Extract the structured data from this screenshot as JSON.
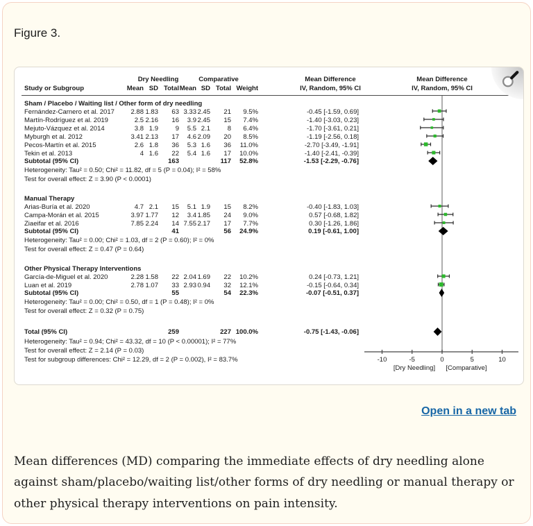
{
  "figure_label": "Figure 3.",
  "open_link_label": "Open in a new tab",
  "caption": "Mean differences (MD) comparing the immediate effects of dry needling alone against sham/placebo/waiting list/other forms of dry needling or manual therapy or other physical therapy interventions on pain intensity.",
  "colors": {
    "marker_green": "#2db82d",
    "diamond_black": "#000000",
    "ci_line": "#2b2b2b",
    "zero_line": "#9a9a9a",
    "axis": "#444444",
    "link_blue": "#1766a6",
    "card_bg": "#fffcf1",
    "card_border": "#f5d3c4"
  },
  "chart_data": {
    "type": "forest",
    "headers": {
      "group1": "Dry Needling",
      "group2": "Comparative",
      "study": "Study or Subgroup",
      "mean": "Mean",
      "sd": "SD",
      "total": "Total",
      "weight": "Weight",
      "effect_title": "Mean Difference",
      "effect_sub": "IV, Random, 95% CI"
    },
    "axis": {
      "ticks": [
        -10,
        -5,
        0,
        5,
        10
      ],
      "xmin": -13,
      "xmax": 12.8,
      "left_label": "[Dry Needling]",
      "right_label": "[Comparative]"
    },
    "subgroups": [
      {
        "title": "Sham / Placebo / Waiting list / Other form of dry needling",
        "studies": [
          {
            "name": "Fernández-Carnero et al. 2017",
            "mean1": "2.88",
            "sd1": "1.83",
            "total1": "63",
            "mean2": "3.33",
            "sd2": "2.45",
            "total2": "21",
            "weight": "9.5%",
            "w": 9.5,
            "ci_text": "-0.45 [-1.59, 0.69]",
            "est": -0.45,
            "lo": -1.59,
            "hi": 0.69
          },
          {
            "name": "Martín-Rodríguez et al. 2019",
            "mean1": "2.5",
            "sd1": "2.16",
            "total1": "16",
            "mean2": "3.9",
            "sd2": "2.45",
            "total2": "15",
            "weight": "7.4%",
            "w": 7.4,
            "ci_text": "-1.40 [-3.03, 0.23]",
            "est": -1.4,
            "lo": -3.03,
            "hi": 0.23
          },
          {
            "name": "Mejuto-Vázquez et al. 2014",
            "mean1": "3.8",
            "sd1": "1.9",
            "total1": "9",
            "mean2": "5.5",
            "sd2": "2.1",
            "total2": "8",
            "weight": "6.4%",
            "w": 6.4,
            "ci_text": "-1.70 [-3.61, 0.21]",
            "est": -1.7,
            "lo": -3.61,
            "hi": 0.21
          },
          {
            "name": "Myburgh et al. 2012",
            "mean1": "3.41",
            "sd1": "2.13",
            "total1": "17",
            "mean2": "4.6",
            "sd2": "2.09",
            "total2": "20",
            "weight": "8.5%",
            "w": 8.5,
            "ci_text": "-1.19 [-2.56, 0.18]",
            "est": -1.19,
            "lo": -2.56,
            "hi": 0.18
          },
          {
            "name": "Pecos-Martín et al. 2015",
            "mean1": "2.6",
            "sd1": "1.8",
            "total1": "36",
            "mean2": "5.3",
            "sd2": "1.6",
            "total2": "36",
            "weight": "11.0%",
            "w": 11.0,
            "ci_text": "-2.70 [-3.49, -1.91]",
            "est": -2.7,
            "lo": -3.49,
            "hi": -1.91
          },
          {
            "name": "Tekin et al. 2013",
            "mean1": "4",
            "sd1": "1.6",
            "total1": "22",
            "mean2": "5.4",
            "sd2": "1.6",
            "total2": "17",
            "weight": "10.0%",
            "w": 10.0,
            "ci_text": "-1.40 [-2.41, -0.39]",
            "est": -1.4,
            "lo": -2.41,
            "hi": -0.39
          }
        ],
        "subtotal": {
          "label": "Subtotal (95% CI)",
          "total1": "163",
          "total2": "117",
          "weight": "52.8%",
          "ci_text": "-1.53 [-2.29, -0.76]",
          "est": -1.53,
          "lo": -2.29,
          "hi": -0.76
        },
        "heterogeneity": "Heterogeneity: Tau² = 0.50; Chi² = 11.82, df = 5 (P = 0.04); I² = 58%",
        "overall_effect": "Test for overall effect: Z = 3.90 (P < 0.0001)"
      },
      {
        "title": "Manual Therapy",
        "studies": [
          {
            "name": "Arias-Buría et al. 2020",
            "mean1": "4.7",
            "sd1": "2.1",
            "total1": "15",
            "mean2": "5.1",
            "sd2": "1.9",
            "total2": "15",
            "weight": "8.2%",
            "w": 8.2,
            "ci_text": "-0.40 [-1.83, 1.03]",
            "est": -0.4,
            "lo": -1.83,
            "hi": 1.03
          },
          {
            "name": "Campa-Morán et al. 2015",
            "mean1": "3.97",
            "sd1": "1.77",
            "total1": "12",
            "mean2": "3.4",
            "sd2": "1.85",
            "total2": "24",
            "weight": "9.0%",
            "w": 9.0,
            "ci_text": "0.57 [-0.68, 1.82]",
            "est": 0.57,
            "lo": -0.68,
            "hi": 1.82
          },
          {
            "name": "Ziaeifar et al. 2016",
            "mean1": "7.85",
            "sd1": "2.24",
            "total1": "14",
            "mean2": "7.55",
            "sd2": "2.17",
            "total2": "17",
            "weight": "7.7%",
            "w": 7.7,
            "ci_text": "0.30 [-1.26, 1.86]",
            "est": 0.3,
            "lo": -1.26,
            "hi": 1.86
          }
        ],
        "subtotal": {
          "label": "Subtotal (95% CI)",
          "total1": "41",
          "total2": "56",
          "weight": "24.9%",
          "ci_text": "0.19 [-0.61, 1.00]",
          "est": 0.19,
          "lo": -0.61,
          "hi": 1.0
        },
        "heterogeneity": "Heterogeneity: Tau² = 0.00; Chi² = 1.03, df = 2 (P = 0.60); I² = 0%",
        "overall_effect": "Test for overall effect: Z = 0.47 (P = 0.64)"
      },
      {
        "title": "Other Physical Therapy Interventions",
        "studies": [
          {
            "name": "García-de-Miguel et al. 2020",
            "mean1": "2.28",
            "sd1": "1.58",
            "total1": "22",
            "mean2": "2.04",
            "sd2": "1.69",
            "total2": "22",
            "weight": "10.2%",
            "w": 10.2,
            "ci_text": "0.24 [-0.73, 1.21]",
            "est": 0.24,
            "lo": -0.73,
            "hi": 1.21
          },
          {
            "name": "Luan et al. 2019",
            "mean1": "2.78",
            "sd1": "1.07",
            "total1": "33",
            "mean2": "2.93",
            "sd2": "0.94",
            "total2": "32",
            "weight": "12.1%",
            "w": 12.1,
            "ci_text": "-0.15 [-0.64, 0.34]",
            "est": -0.15,
            "lo": -0.64,
            "hi": 0.34
          }
        ],
        "subtotal": {
          "label": "Subtotal (95% CI)",
          "total1": "55",
          "total2": "54",
          "weight": "22.3%",
          "ci_text": "-0.07 [-0.51, 0.37]",
          "est": -0.07,
          "lo": -0.51,
          "hi": 0.37
        },
        "heterogeneity": "Heterogeneity: Tau² = 0.00; Chi² = 0.50, df = 1 (P = 0.48); I² = 0%",
        "overall_effect": "Test for overall effect: Z = 0.32 (P = 0.75)"
      }
    ],
    "total": {
      "label": "Total (95% CI)",
      "total1": "259",
      "total2": "227",
      "weight": "100.0%",
      "ci_text": "-0.75 [-1.43, -0.06]",
      "est": -0.75,
      "lo": -1.43,
      "hi": -0.06
    },
    "total_heterogeneity": "Heterogeneity: Tau² = 0.94; Chi² = 43.32, df = 10 (P < 0.00001); I² = 77%",
    "total_overall_effect": "Test for overall effect: Z = 2.14 (P = 0.03)",
    "subgroup_differences": "Test for subgroup differences: Chi² = 12.29, df = 2 (P = 0.002), I² = 83.7%"
  }
}
